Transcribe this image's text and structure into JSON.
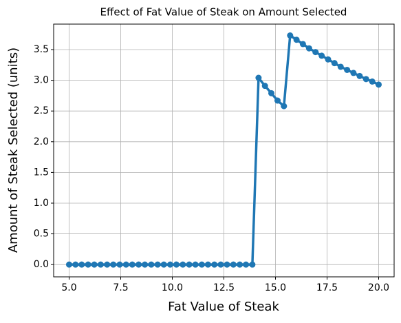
{
  "chart_data": {
    "type": "line",
    "title": "Effect of Fat Value of Steak on Amount Selected",
    "x_label": "Fat Value of Steak",
    "y_label": "Amount of Steak Selected (units)",
    "x": [
      5.0,
      5.31,
      5.61,
      5.92,
      6.22,
      6.53,
      6.84,
      7.14,
      7.45,
      7.76,
      8.06,
      8.37,
      8.67,
      8.98,
      9.29,
      9.59,
      9.9,
      10.2,
      10.51,
      10.82,
      11.12,
      11.43,
      11.73,
      12.04,
      12.35,
      12.65,
      12.96,
      13.27,
      13.57,
      13.88,
      14.18,
      14.49,
      14.8,
      15.1,
      15.41,
      15.71,
      16.02,
      16.33,
      16.63,
      16.94,
      17.24,
      17.55,
      17.86,
      18.16,
      18.47,
      18.78,
      19.08,
      19.39,
      19.69,
      20.0
    ],
    "series": [
      {
        "name": "Amount Selected",
        "color": "#1f77b4",
        "values": [
          0,
          0,
          0,
          0,
          0,
          0,
          0,
          0,
          0,
          0,
          0,
          0,
          0,
          0,
          0,
          0,
          0,
          0,
          0,
          0,
          0,
          0,
          0,
          0,
          0,
          0,
          0,
          0,
          0,
          0,
          3.04,
          2.91,
          2.79,
          2.67,
          2.58,
          3.73,
          3.66,
          3.59,
          3.52,
          3.46,
          3.4,
          3.34,
          3.28,
          3.22,
          3.17,
          3.12,
          3.07,
          3.02,
          2.98,
          2.93
        ]
      }
    ],
    "xlim": [
      4.25,
      20.75
    ],
    "ylim": [
      -0.2,
      3.915
    ],
    "xticks": [
      {
        "value": 5,
        "label": "5.0"
      },
      {
        "value": 7.5,
        "label": "7.5"
      },
      {
        "value": 10,
        "label": "10.0"
      },
      {
        "value": 12.5,
        "label": "12.5"
      },
      {
        "value": 15,
        "label": "15.0"
      },
      {
        "value": 17.5,
        "label": "17.5"
      },
      {
        "value": 20,
        "label": "20.0"
      }
    ],
    "yticks": [
      {
        "value": 0,
        "label": "0.0"
      },
      {
        "value": 0.5,
        "label": "0.5"
      },
      {
        "value": 1,
        "label": "1.0"
      },
      {
        "value": 1.5,
        "label": "1.5"
      },
      {
        "value": 2,
        "label": "2.0"
      },
      {
        "value": 2.5,
        "label": "2.5"
      },
      {
        "value": 3,
        "label": "3.0"
      },
      {
        "value": 3.5,
        "label": "3.5"
      }
    ],
    "grid": true
  }
}
